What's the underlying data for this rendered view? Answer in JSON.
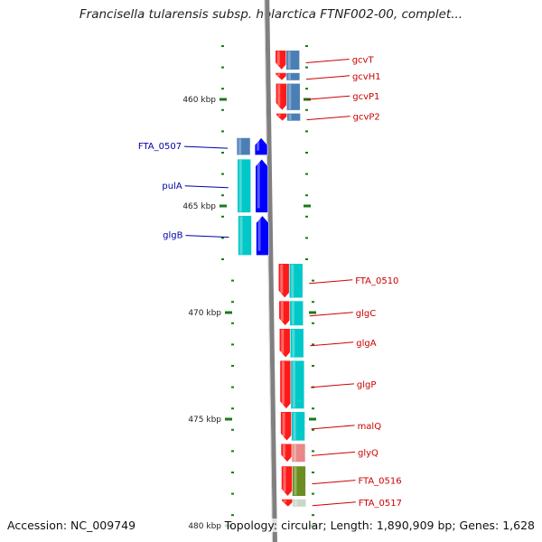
{
  "title": "Francisella tularensis subsp. holarctica FTNF002-00, complet...",
  "footer": {
    "accession": "Accession: NC_009749",
    "topology": "Topology: circular; Length: 1,890,909 bp; Genes: 1,628"
  },
  "colors": {
    "forward_label": "#cc0000",
    "reverse_label": "#0000aa",
    "tick": "#1a7a1a",
    "backbone": "#808080"
  },
  "axis": {
    "unit": "kbp",
    "ticks": [
      {
        "value": 460,
        "label": "460 kbp"
      },
      {
        "value": 465,
        "label": "465 kbp"
      },
      {
        "value": 470,
        "label": "470 kbp"
      },
      {
        "value": 475,
        "label": "475 kbp"
      },
      {
        "value": 480,
        "label": "480 kbp"
      }
    ]
  },
  "genes": [
    {
      "name": "gcvT",
      "strand": "+",
      "start_kbp": 457.7,
      "end_kbp": 458.7,
      "color": "#4a7fb5"
    },
    {
      "name": "gcvH1",
      "strand": "+",
      "start_kbp": 458.75,
      "end_kbp": 459.2,
      "color": "#4a7fb5"
    },
    {
      "name": "gcvP1",
      "strand": "+",
      "start_kbp": 459.25,
      "end_kbp": 460.6,
      "color": "#4a7fb5"
    },
    {
      "name": "gcvP2",
      "strand": "+",
      "start_kbp": 460.65,
      "end_kbp": 461.1,
      "color": "#4a7fb5"
    },
    {
      "name": "FTA_0507",
      "strand": "-",
      "start_kbp": 461.8,
      "end_kbp": 462.7,
      "color": "#4a7fb5"
    },
    {
      "name": "pulA",
      "strand": "-",
      "start_kbp": 462.8,
      "end_kbp": 465.4,
      "color": "#00c8c8"
    },
    {
      "name": "glgB",
      "strand": "-",
      "start_kbp": 465.45,
      "end_kbp": 467.4,
      "color": "#00c8c8"
    },
    {
      "name": "FTA_0510",
      "strand": "+",
      "start_kbp": 467.7,
      "end_kbp": 469.4,
      "color": "#00c8c8"
    },
    {
      "name": "glgC",
      "strand": "+",
      "start_kbp": 469.45,
      "end_kbp": 470.7,
      "color": "#00c8c8"
    },
    {
      "name": "glgA",
      "strand": "+",
      "start_kbp": 470.75,
      "end_kbp": 472.2,
      "color": "#00c8c8"
    },
    {
      "name": "glgP",
      "strand": "+",
      "start_kbp": 472.25,
      "end_kbp": 474.6,
      "color": "#00c8c8"
    },
    {
      "name": "malQ",
      "strand": "+",
      "start_kbp": 474.65,
      "end_kbp": 476.1,
      "color": "#00c8c8"
    },
    {
      "name": "glyQ",
      "strand": "+",
      "start_kbp": 476.15,
      "end_kbp": 477.1,
      "color": "#e88888"
    },
    {
      "name": "FTA_0516",
      "strand": "+",
      "start_kbp": 477.2,
      "end_kbp": 478.7,
      "color": "#6b8e23"
    },
    {
      "name": "FTA_0517",
      "strand": "+",
      "start_kbp": 478.75,
      "end_kbp": 479.2,
      "color": "#c8d8c8"
    }
  ]
}
